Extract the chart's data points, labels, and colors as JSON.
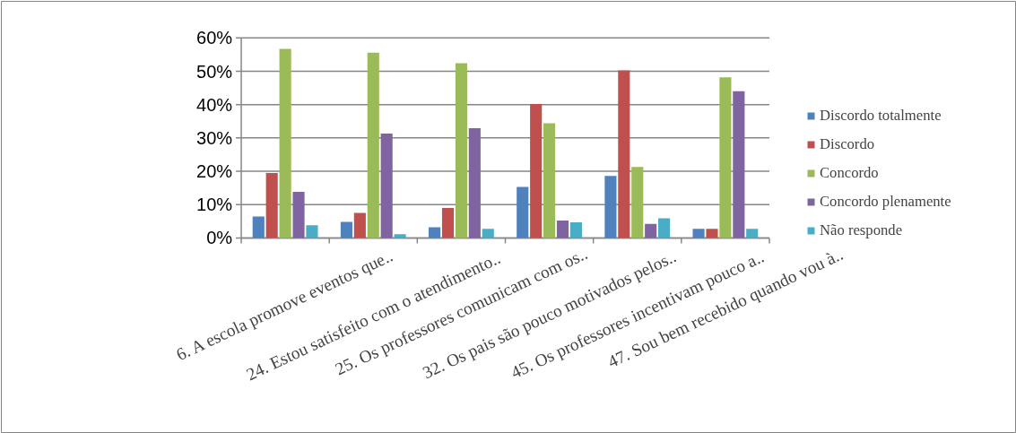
{
  "chart_data": {
    "type": "bar",
    "categories": [
      "6. A escola promove eventos que..",
      "24. Estou satisfeito com o atendimento..",
      "25. Os professores comunicam com os..",
      "32. Os pais são pouco motivados pelos..",
      "45. Os professores incentivam pouco a..",
      "47. Sou bem recebido quando vou à.."
    ],
    "series": [
      {
        "name": "Discordo totalmente",
        "color": "#4f81bd",
        "values": [
          6.4,
          4.8,
          3.2,
          15.3,
          18.6,
          2.7
        ]
      },
      {
        "name": "Discordo",
        "color": "#c0504d",
        "values": [
          19.5,
          7.5,
          9.0,
          40.2,
          50.3,
          2.7
        ]
      },
      {
        "name": "Concordo",
        "color": "#9bbb59",
        "values": [
          56.7,
          55.6,
          52.4,
          34.4,
          21.3,
          48.2
        ]
      },
      {
        "name": "Concordo plenamente",
        "color": "#8064a2",
        "values": [
          13.8,
          31.3,
          32.9,
          5.2,
          4.2,
          44.0
        ]
      },
      {
        "name": "Não responde",
        "color": "#4bacc6",
        "values": [
          3.8,
          1.1,
          2.7,
          4.7,
          5.9,
          2.7
        ]
      }
    ],
    "ylim": [
      0,
      60
    ],
    "yticks": [
      {
        "value": 0,
        "label": "0%"
      },
      {
        "value": 10,
        "label": "10%"
      },
      {
        "value": 20,
        "label": "20%"
      },
      {
        "value": 30,
        "label": "30%"
      },
      {
        "value": 40,
        "label": "40%"
      },
      {
        "value": 50,
        "label": "50%"
      },
      {
        "value": 60,
        "label": "60%"
      }
    ],
    "grid": "y",
    "legend": "right"
  }
}
